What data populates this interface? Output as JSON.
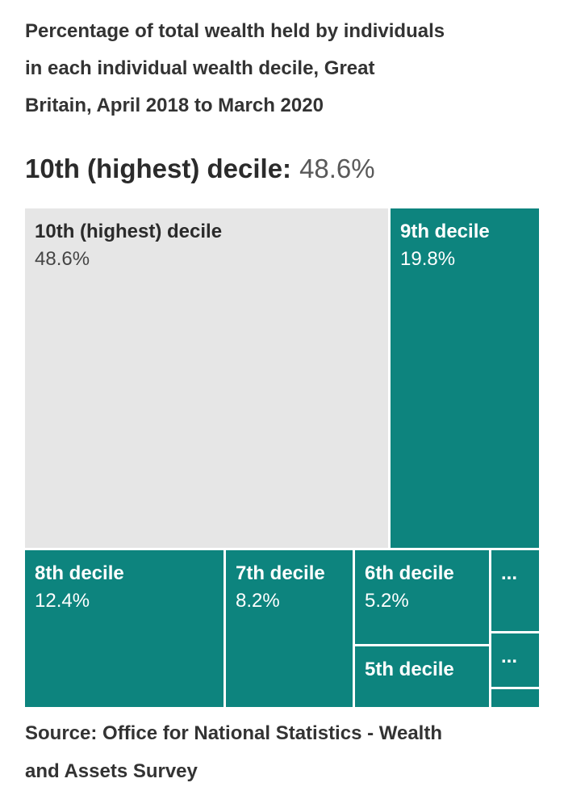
{
  "title": {
    "lines": [
      "Percentage of total wealth held by individuals",
      "in each individual wealth decile, Great",
      "Britain, April 2018 to March 2020"
    ]
  },
  "headline": {
    "label": "10th (highest) decile:",
    "value": "48.6%"
  },
  "source": {
    "lines": [
      "Source: Office for National Statistics - Wealth",
      "and Assets Survey"
    ]
  },
  "colors": {
    "teal": "#0d847e",
    "gray_cell": "#e6e6e6",
    "title_text": "#333333",
    "headline_value_text": "#595959",
    "cell_text_light": "#ffffff",
    "cell_text_dark": "#2b2b2b"
  },
  "chart_data": {
    "type": "treemap",
    "title": "Percentage of total wealth held by individuals in each individual wealth decile, Great Britain, April 2018 to March 2020",
    "units": "%",
    "items": [
      {
        "label": "10th (highest) decile",
        "value": 48.6,
        "display": "48.6%"
      },
      {
        "label": "9th decile",
        "value": 19.8,
        "display": "19.8%"
      },
      {
        "label": "8th decile",
        "value": 12.4,
        "display": "12.4%"
      },
      {
        "label": "7th decile",
        "value": 8.2,
        "display": "8.2%"
      },
      {
        "label": "6th decile",
        "value": 5.2,
        "display": "5.2%"
      },
      {
        "label": "5th decile",
        "value": null,
        "display": ""
      },
      {
        "label": "...",
        "value": null,
        "display": ""
      },
      {
        "label": "...",
        "value": null,
        "display": ""
      },
      {
        "label": "",
        "value": null,
        "display": ""
      }
    ]
  }
}
